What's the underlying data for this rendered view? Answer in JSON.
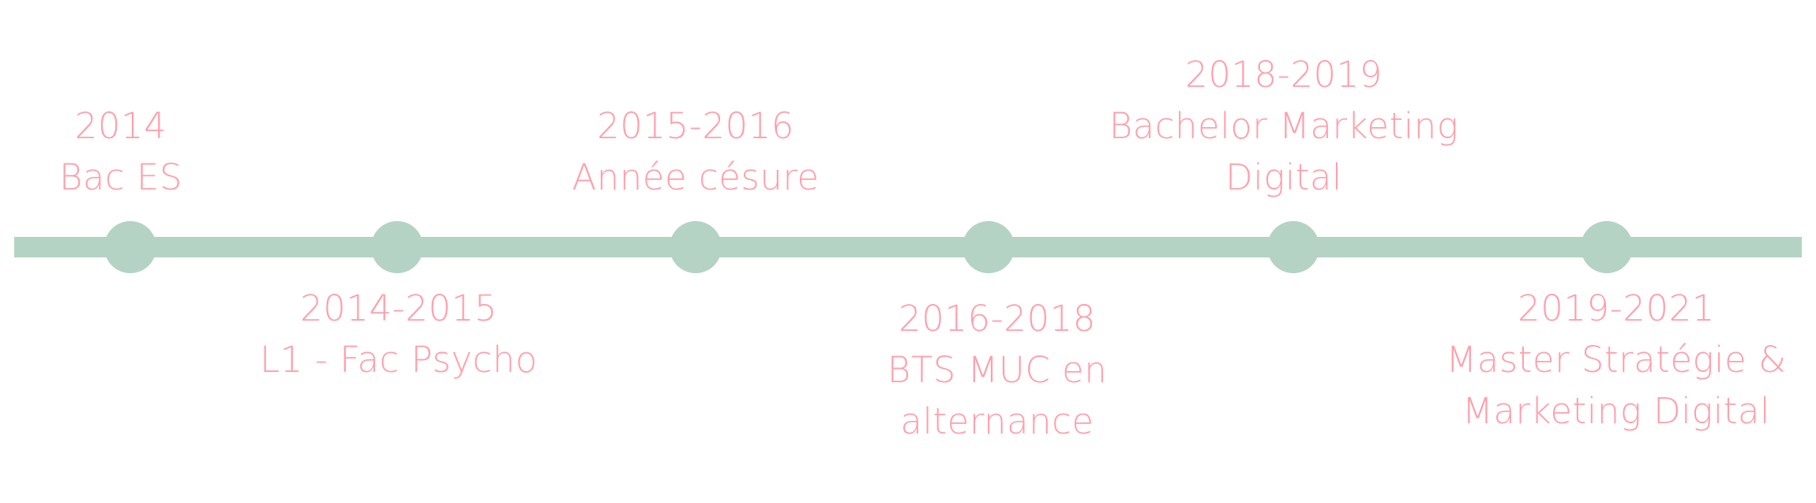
{
  "colors": {
    "line": "#b4d3c5",
    "dot": "#b4d3c5",
    "text": "#ff9fab",
    "background": "#ffffff"
  },
  "milestones": [
    {
      "year": "2014",
      "lines": [
        "Bac ES"
      ],
      "position": "above"
    },
    {
      "year": "2014-2015",
      "lines": [
        "L1 - Fac Psycho"
      ],
      "position": "below"
    },
    {
      "year": "2015-2016",
      "lines": [
        "Année césure"
      ],
      "position": "above"
    },
    {
      "year": "2016-2018",
      "lines": [
        "BTS MUC en",
        "alternance"
      ],
      "position": "below"
    },
    {
      "year": "2018-2019",
      "lines": [
        "Bachelor Marketing",
        "Digital"
      ],
      "position": "above"
    },
    {
      "year": "2019-2021",
      "lines": [
        "Master Stratégie &",
        "Marketing Digital"
      ],
      "position": "below"
    }
  ]
}
